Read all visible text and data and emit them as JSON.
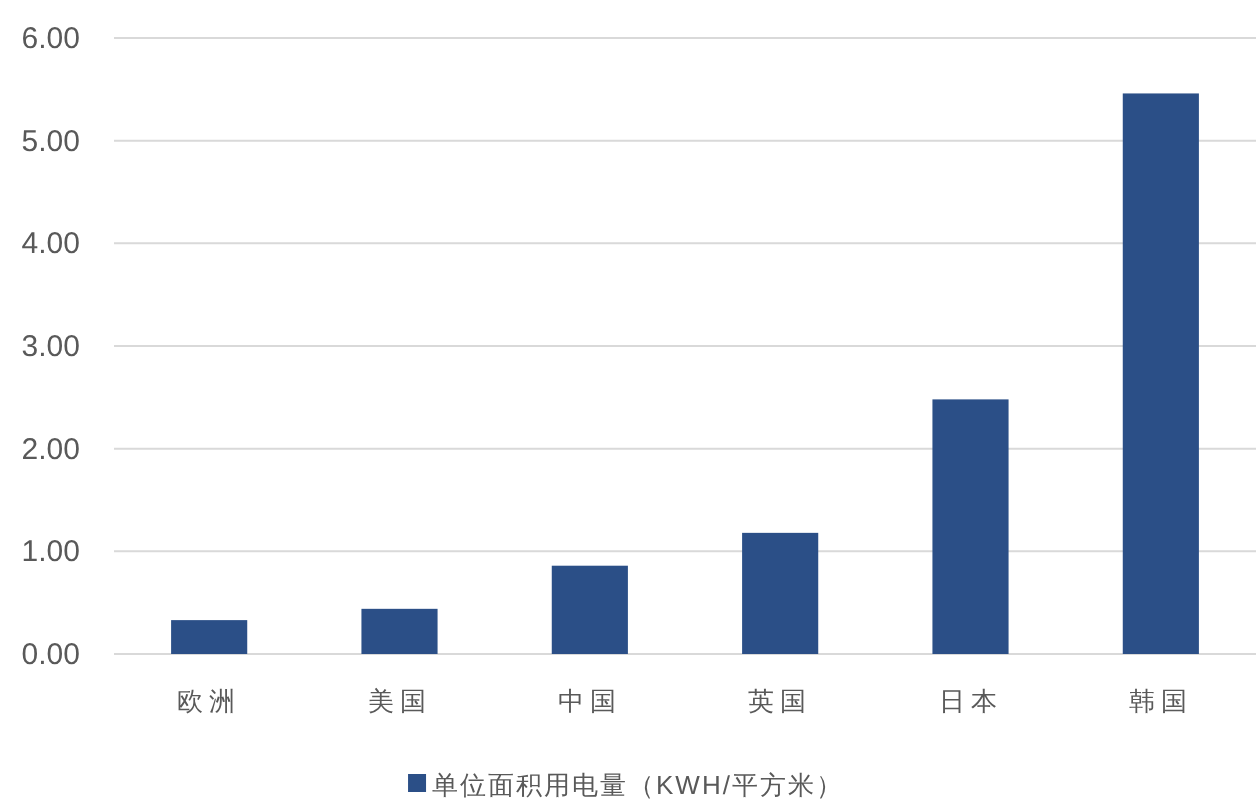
{
  "chart_data": {
    "type": "bar",
    "categories": [
      "欧洲",
      "美国",
      "中国",
      "英国",
      "日本",
      "韩国"
    ],
    "series": [
      {
        "name": "单位面积用电量（KWH/平方米）",
        "color": "#2b4f87",
        "values": [
          0.33,
          0.44,
          0.86,
          1.18,
          2.48,
          5.46
        ]
      }
    ],
    "ylim": [
      0,
      6
    ],
    "yticks": [
      {
        "value": 0,
        "label": "0.00"
      },
      {
        "value": 1,
        "label": "1.00"
      },
      {
        "value": 2,
        "label": "2.00"
      },
      {
        "value": 3,
        "label": "3.00"
      },
      {
        "value": 4,
        "label": "4.00"
      },
      {
        "value": 5,
        "label": "5.00"
      },
      {
        "value": 6,
        "label": "6.00"
      }
    ],
    "grid": "y",
    "legend": "bottom"
  }
}
